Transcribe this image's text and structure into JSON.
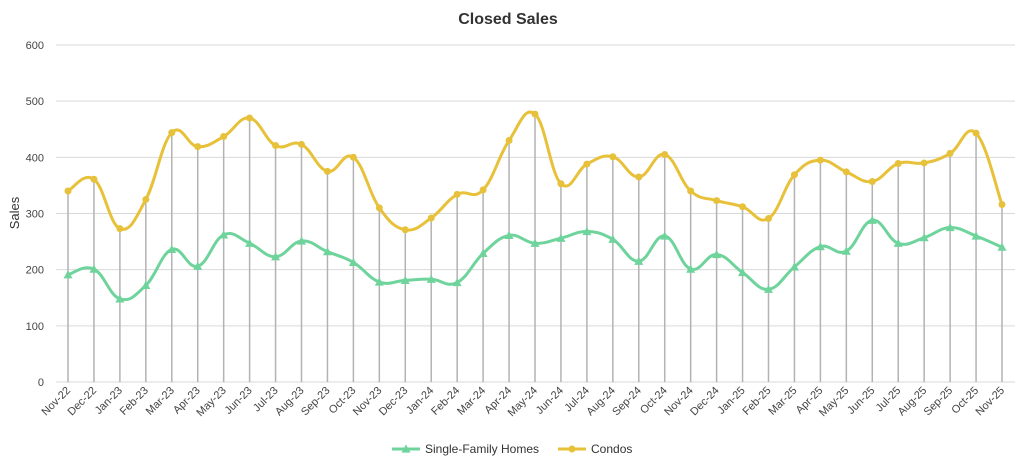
{
  "chart_data": {
    "type": "line",
    "title": "Closed Sales",
    "xlabel": "",
    "ylabel": "Sales",
    "ylim": [
      0,
      600
    ],
    "yticks": [
      0,
      100,
      200,
      300,
      400,
      500,
      600
    ],
    "grid": true,
    "drop_lines": true,
    "legend_position": "bottom",
    "categories": [
      "Nov-22",
      "Dec-22",
      "Jan-23",
      "Feb-23",
      "Mar-23",
      "Apr-23",
      "May-23",
      "Jun-23",
      "Jul-23",
      "Aug-23",
      "Sep-23",
      "Oct-23",
      "Nov-23",
      "Dec-23",
      "Jan-24",
      "Feb-24",
      "Mar-24",
      "Apr-24",
      "May-24",
      "Jun-24",
      "Jul-24",
      "Aug-24",
      "Sep-24",
      "Oct-24",
      "Nov-24",
      "Dec-24",
      "Jan-25",
      "Feb-25",
      "Mar-25",
      "Apr-25",
      "May-25",
      "Jun-25",
      "Jul-25",
      "Aug-25",
      "Sep-25",
      "Oct-25",
      "Nov-25"
    ],
    "series": [
      {
        "name": "Single-Family Homes",
        "color": "#6fd39c",
        "marker": "triangle",
        "values": [
          191,
          201,
          148,
          172,
          236,
          206,
          262,
          247,
          223,
          251,
          232,
          213,
          178,
          181,
          183,
          177,
          229,
          261,
          247,
          256,
          268,
          254,
          215,
          260,
          201,
          227,
          195,
          165,
          205,
          241,
          233,
          288,
          247,
          257,
          275,
          260,
          240
        ]
      },
      {
        "name": "Condos",
        "color": "#e8c13a",
        "marker": "circle",
        "values": [
          340,
          361,
          273,
          325,
          444,
          419,
          437,
          470,
          421,
          423,
          375,
          400,
          310,
          271,
          292,
          334,
          342,
          430,
          477,
          353,
          388,
          401,
          365,
          405,
          340,
          323,
          312,
          291,
          369,
          395,
          374,
          357,
          389,
          390,
          407,
          443,
          316
        ]
      }
    ]
  }
}
